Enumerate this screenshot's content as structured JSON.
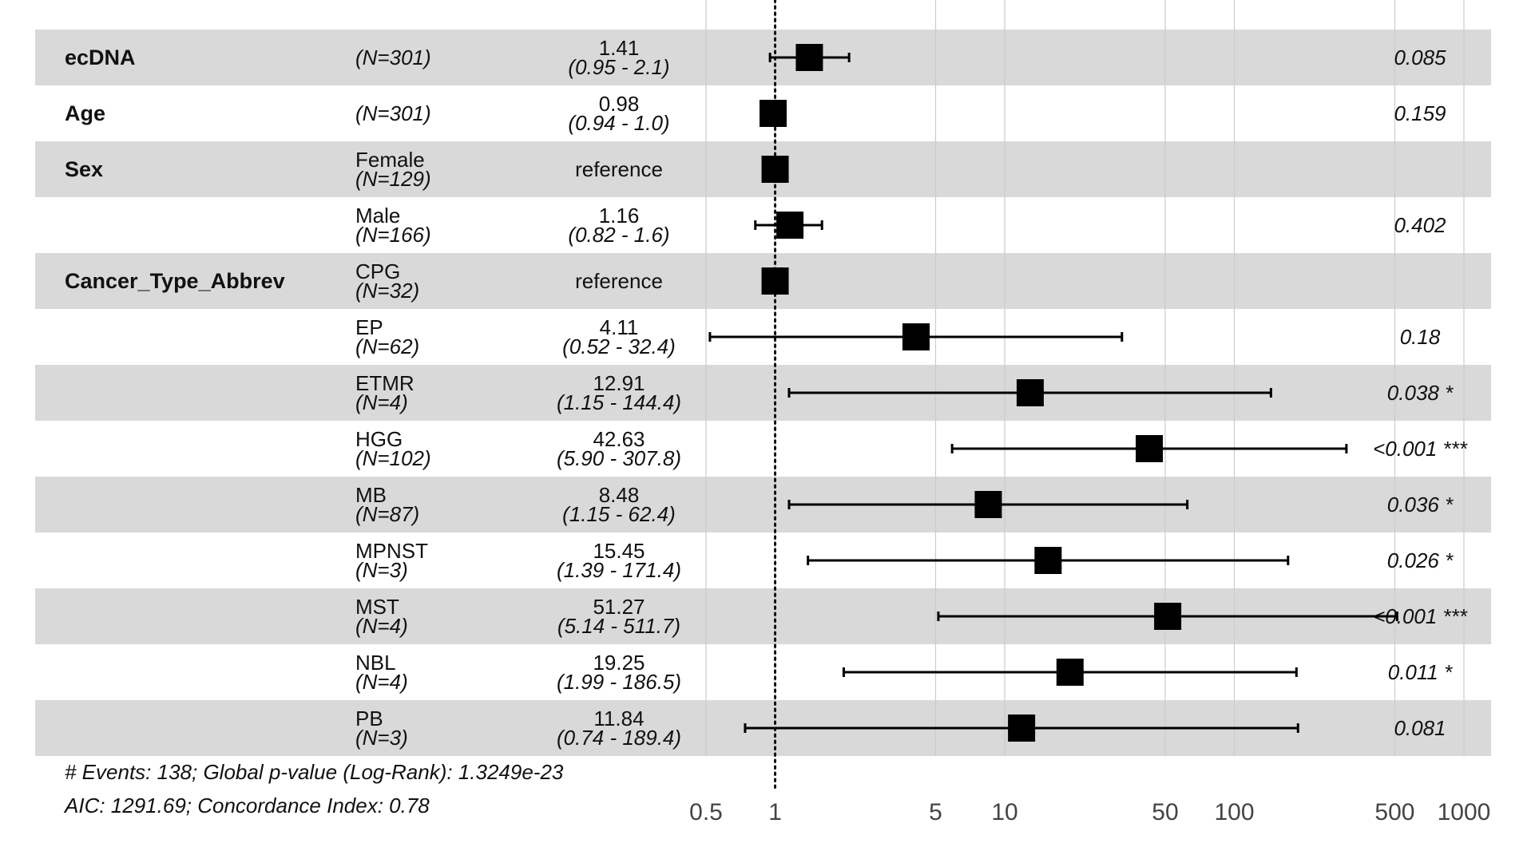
{
  "chart_data": {
    "type": "forest",
    "x_scale": "log",
    "xlim": [
      0.5,
      1000
    ],
    "x_ticks": [
      {
        "value": 0.5,
        "label": "0.5"
      },
      {
        "value": 1,
        "label": "1"
      },
      {
        "value": 5,
        "label": "5"
      },
      {
        "value": 10,
        "label": "10"
      },
      {
        "value": 50,
        "label": "50"
      },
      {
        "value": 100,
        "label": "100"
      },
      {
        "value": 500,
        "label": "500"
      },
      {
        "value": 1000,
        "label": "1000"
      }
    ],
    "reference_line": 1,
    "rows": [
      {
        "variable": "ecDNA",
        "level": "",
        "n": "(N=301)",
        "hr": 1.41,
        "lo": 0.95,
        "hi": 2.1,
        "est_label": "1.41",
        "ci_label": "(0.95 -   2.1)",
        "p": "0.085"
      },
      {
        "variable": "Age",
        "level": "",
        "n": "(N=301)",
        "hr": 0.98,
        "lo": 0.94,
        "hi": 1.0,
        "est_label": "0.98",
        "ci_label": "(0.94 -   1.0)",
        "p": "0.159"
      },
      {
        "variable": "Sex",
        "level": "Female",
        "n": "(N=129)",
        "hr": 1,
        "lo": null,
        "hi": null,
        "est_label": "reference",
        "ci_label": "",
        "p": ""
      },
      {
        "variable": "",
        "level": "Male",
        "n": "(N=166)",
        "hr": 1.16,
        "lo": 0.82,
        "hi": 1.6,
        "est_label": "1.16",
        "ci_label": "(0.82 -   1.6)",
        "p": "0.402"
      },
      {
        "variable": "Cancer_Type_Abbrev",
        "level": "CPG",
        "n": "(N=32)",
        "hr": 1,
        "lo": null,
        "hi": null,
        "est_label": "reference",
        "ci_label": "",
        "p": ""
      },
      {
        "variable": "",
        "level": "EP",
        "n": "(N=62)",
        "hr": 4.11,
        "lo": 0.52,
        "hi": 32.4,
        "est_label": "4.11",
        "ci_label": "(0.52 -  32.4)",
        "p": "0.18"
      },
      {
        "variable": "",
        "level": "ETMR",
        "n": "(N=4)",
        "hr": 12.91,
        "lo": 1.15,
        "hi": 144.4,
        "est_label": "12.91",
        "ci_label": "(1.15 - 144.4)",
        "p": "0.038 *"
      },
      {
        "variable": "",
        "level": "HGG",
        "n": "(N=102)",
        "hr": 42.63,
        "lo": 5.9,
        "hi": 307.8,
        "est_label": "42.63",
        "ci_label": "(5.90 - 307.8)",
        "p": "<0.001 ***"
      },
      {
        "variable": "",
        "level": "MB",
        "n": "(N=87)",
        "hr": 8.48,
        "lo": 1.15,
        "hi": 62.4,
        "est_label": "8.48",
        "ci_label": "(1.15 -  62.4)",
        "p": "0.036 *"
      },
      {
        "variable": "",
        "level": "MPNST",
        "n": "(N=3)",
        "hr": 15.45,
        "lo": 1.39,
        "hi": 171.4,
        "est_label": "15.45",
        "ci_label": "(1.39 - 171.4)",
        "p": "0.026 *"
      },
      {
        "variable": "",
        "level": "MST",
        "n": "(N=4)",
        "hr": 51.27,
        "lo": 5.14,
        "hi": 511.7,
        "est_label": "51.27",
        "ci_label": "(5.14 - 511.7)",
        "p": "<0.001 ***"
      },
      {
        "variable": "",
        "level": "NBL",
        "n": "(N=4)",
        "hr": 19.25,
        "lo": 1.99,
        "hi": 186.5,
        "est_label": "19.25",
        "ci_label": "(1.99 - 186.5)",
        "p": "0.011 *"
      },
      {
        "variable": "",
        "level": "PB",
        "n": "(N=3)",
        "hr": 11.84,
        "lo": 0.74,
        "hi": 189.4,
        "est_label": "11.84",
        "ci_label": "(0.74 - 189.4)",
        "p": "0.081"
      }
    ],
    "colors": {
      "band": "#d9d9d9",
      "gridline": "#cccccc",
      "mark": "#000000"
    }
  },
  "footer": {
    "line1": "# Events: 138; Global p-value (Log-Rank): 1.3249e-23",
    "line2": "AIC: 1291.69; Concordance Index: 0.78"
  }
}
